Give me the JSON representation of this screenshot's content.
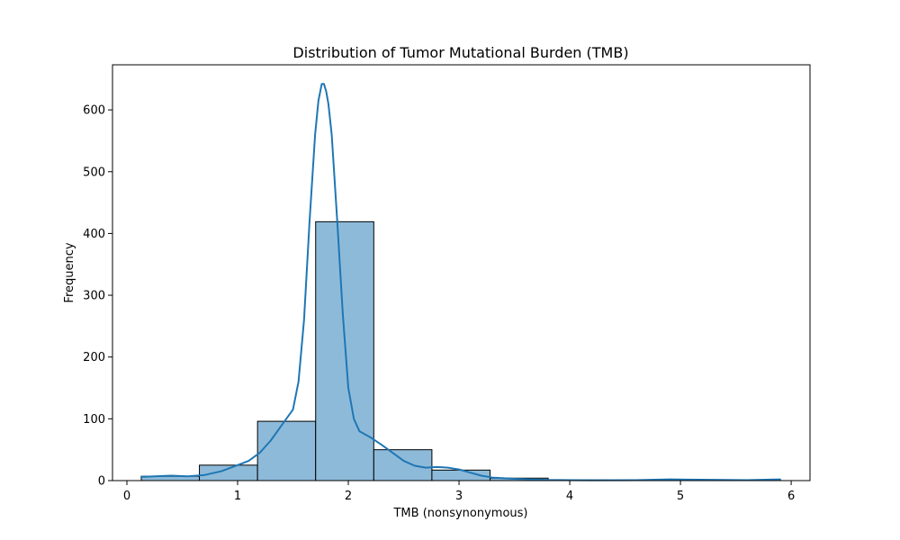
{
  "chart_data": {
    "type": "bar",
    "title": "Distribution of Tumor Mutational Burden (TMB)",
    "xlabel": "TMB (nonsynonymous)",
    "ylabel": "Frequency",
    "xlim": [
      -0.13,
      6.17
    ],
    "ylim": [
      0,
      673
    ],
    "xticks": [
      0,
      1,
      2,
      3,
      4,
      5,
      6
    ],
    "yticks": [
      0,
      100,
      200,
      300,
      400,
      500,
      600
    ],
    "grid": false,
    "colors": {
      "bar_fill": "#8ebad9",
      "bar_edge": "#000000",
      "kde_line": "#1f77b4"
    },
    "bins": [
      {
        "x0": 0.13,
        "x1": 0.655,
        "count": 7
      },
      {
        "x0": 0.655,
        "x1": 1.18,
        "count": 25
      },
      {
        "x0": 1.18,
        "x1": 1.705,
        "count": 96
      },
      {
        "x0": 1.705,
        "x1": 2.23,
        "count": 419
      },
      {
        "x0": 2.23,
        "x1": 2.755,
        "count": 50
      },
      {
        "x0": 2.755,
        "x1": 3.28,
        "count": 17
      },
      {
        "x0": 3.28,
        "x1": 3.805,
        "count": 4
      },
      {
        "x0": 3.805,
        "x1": 4.33,
        "count": 1
      },
      {
        "x0": 4.33,
        "x1": 4.855,
        "count": 0
      },
      {
        "x0": 4.855,
        "x1": 5.38,
        "count": 1
      },
      {
        "x0": 5.38,
        "x1": 5.905,
        "count": 1
      }
    ],
    "kde": {
      "x": [
        0.13,
        0.25,
        0.4,
        0.55,
        0.7,
        0.85,
        1.0,
        1.1,
        1.2,
        1.3,
        1.4,
        1.5,
        1.55,
        1.6,
        1.65,
        1.7,
        1.73,
        1.76,
        1.78,
        1.8,
        1.82,
        1.85,
        1.9,
        1.95,
        2.0,
        2.05,
        2.1,
        2.2,
        2.3,
        2.4,
        2.5,
        2.6,
        2.7,
        2.8,
        2.9,
        3.0,
        3.1,
        3.2,
        3.3,
        3.5,
        3.8,
        4.2,
        4.6,
        4.9,
        5.3,
        5.6,
        5.9
      ],
      "y": [
        6,
        7,
        8,
        7,
        9,
        15,
        25,
        32,
        45,
        65,
        90,
        115,
        160,
        260,
        420,
        560,
        615,
        642,
        642,
        630,
        610,
        560,
        420,
        270,
        150,
        100,
        80,
        70,
        58,
        45,
        32,
        24,
        21,
        22,
        21,
        18,
        13,
        8,
        5,
        3,
        1,
        0.5,
        0.7,
        2,
        1.2,
        0.8,
        2
      ]
    }
  }
}
